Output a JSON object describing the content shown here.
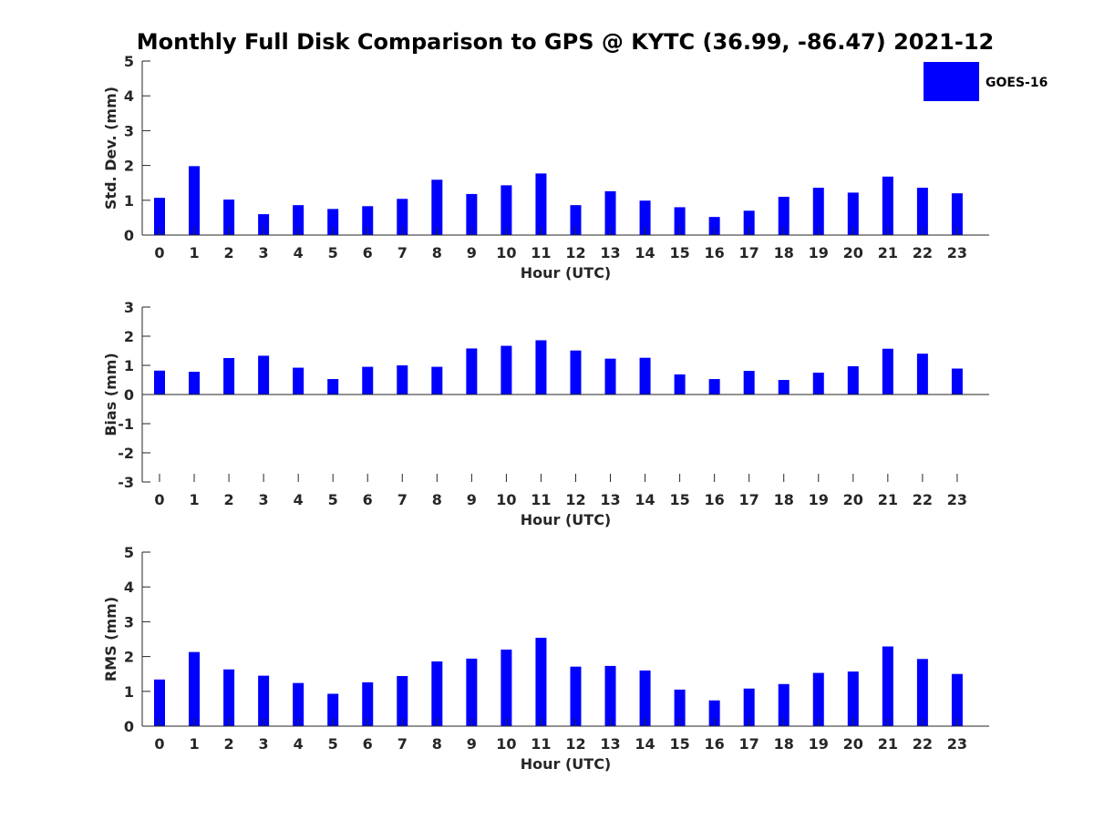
{
  "title": "Monthly Full Disk Comparison to GPS @ KYTC (36.99, -86.47) 2021-12",
  "legend": {
    "label": "GOES-16",
    "color": "#0000FF"
  },
  "bar_color": "#0000FF",
  "chart_data": [
    {
      "type": "bar",
      "xlabel": "Hour (UTC)",
      "ylabel": "Std. Dev. (mm)",
      "ylim": [
        0,
        5
      ],
      "yticks": [
        0,
        1,
        2,
        3,
        4,
        5
      ],
      "categories": [
        "0",
        "1",
        "2",
        "3",
        "4",
        "5",
        "6",
        "7",
        "8",
        "9",
        "10",
        "11",
        "12",
        "13",
        "14",
        "15",
        "16",
        "17",
        "18",
        "19",
        "20",
        "21",
        "22",
        "23"
      ],
      "series": [
        {
          "name": "GOES-16",
          "values": [
            1.07,
            1.98,
            1.02,
            0.6,
            0.86,
            0.75,
            0.83,
            1.04,
            1.59,
            1.18,
            1.43,
            1.77,
            0.86,
            1.26,
            0.99,
            0.8,
            0.52,
            0.7,
            1.1,
            1.36,
            1.22,
            1.68,
            1.36,
            1.2
          ]
        }
      ],
      "grid": false,
      "legend_position": "top-right-outside"
    },
    {
      "type": "bar",
      "xlabel": "Hour (UTC)",
      "ylabel": "Bias (mm)",
      "ylim": [
        -3,
        3
      ],
      "yticks": [
        -3,
        -2,
        -1,
        0,
        1,
        2,
        3
      ],
      "categories": [
        "0",
        "1",
        "2",
        "3",
        "4",
        "5",
        "6",
        "7",
        "8",
        "9",
        "10",
        "11",
        "12",
        "13",
        "14",
        "15",
        "16",
        "17",
        "18",
        "19",
        "20",
        "21",
        "22",
        "23"
      ],
      "series": [
        {
          "name": "GOES-16",
          "values": [
            0.82,
            0.78,
            1.25,
            1.33,
            0.92,
            0.53,
            0.95,
            1.0,
            0.95,
            1.58,
            1.67,
            1.86,
            1.51,
            1.23,
            1.26,
            0.69,
            0.53,
            0.81,
            0.5,
            0.75,
            0.97,
            1.57,
            1.4,
            0.89
          ]
        }
      ],
      "grid": false
    },
    {
      "type": "bar",
      "xlabel": "Hour (UTC)",
      "ylabel": "RMS (mm)",
      "ylim": [
        0,
        5
      ],
      "yticks": [
        0,
        1,
        2,
        3,
        4,
        5
      ],
      "categories": [
        "0",
        "1",
        "2",
        "3",
        "4",
        "5",
        "6",
        "7",
        "8",
        "9",
        "10",
        "11",
        "12",
        "13",
        "14",
        "15",
        "16",
        "17",
        "18",
        "19",
        "20",
        "21",
        "22",
        "23"
      ],
      "series": [
        {
          "name": "GOES-16",
          "values": [
            1.34,
            2.13,
            1.63,
            1.45,
            1.24,
            0.93,
            1.26,
            1.44,
            1.86,
            1.94,
            2.2,
            2.54,
            1.71,
            1.73,
            1.6,
            1.05,
            0.74,
            1.08,
            1.21,
            1.53,
            1.57,
            2.29,
            1.93,
            1.5
          ]
        }
      ],
      "grid": false
    }
  ]
}
